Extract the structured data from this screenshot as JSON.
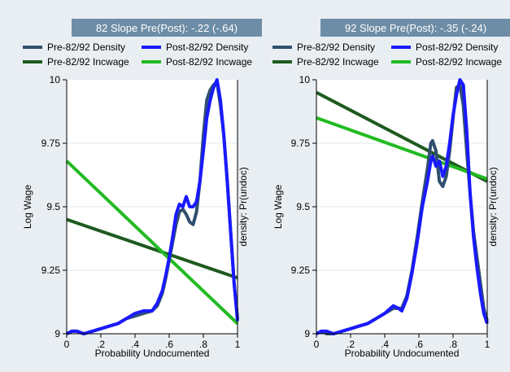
{
  "chart_data": [
    {
      "type": "line",
      "title": "82 Slope Pre(Post): -.22 (-.64)",
      "xlabel": "Probability Undocumented",
      "ylabel": "Log Wage",
      "y2label": "density: Pr(undoc)",
      "xlim": [
        0,
        1
      ],
      "ylim": [
        9,
        10
      ],
      "x_ticks": [
        "0",
        ".2",
        ".4",
        ".6",
        ".8",
        "1"
      ],
      "y_ticks": [
        "9",
        "9.25",
        "9.5",
        "9.75",
        "10"
      ],
      "grid": true,
      "legend_position": "top",
      "legend": [
        {
          "label": "Pre-82/92 Density",
          "color": "#2f4f6f"
        },
        {
          "label": "Post-82/92 Density",
          "color": "#1a1aff"
        },
        {
          "label": "Pre-82/92 Incwage",
          "color": "#1e5a1e"
        },
        {
          "label": "Post-82/92 Incwage",
          "color": "#22bb22"
        }
      ],
      "series": [
        {
          "name": "Pre-82/92 Incwage",
          "kind": "line",
          "color": "#1e5a1e",
          "points": [
            [
              0,
              9.45
            ],
            [
              1,
              9.22
            ]
          ]
        },
        {
          "name": "Post-82/92 Incwage",
          "kind": "line",
          "color": "#22bb22",
          "points": [
            [
              0,
              9.68
            ],
            [
              1,
              9.04
            ]
          ]
        },
        {
          "name": "Pre-82/92 Density",
          "kind": "density",
          "color": "#2f4f6f",
          "points": [
            [
              0,
              9.0
            ],
            [
              0.03,
              9.01
            ],
            [
              0.06,
              9.01
            ],
            [
              0.1,
              9.0
            ],
            [
              0.15,
              9.01
            ],
            [
              0.2,
              9.02
            ],
            [
              0.25,
              9.03
            ],
            [
              0.3,
              9.04
            ],
            [
              0.35,
              9.06
            ],
            [
              0.4,
              9.07
            ],
            [
              0.45,
              9.08
            ],
            [
              0.5,
              9.09
            ],
            [
              0.53,
              9.11
            ],
            [
              0.56,
              9.16
            ],
            [
              0.58,
              9.22
            ],
            [
              0.6,
              9.29
            ],
            [
              0.62,
              9.36
            ],
            [
              0.64,
              9.43
            ],
            [
              0.66,
              9.48
            ],
            [
              0.68,
              9.49
            ],
            [
              0.7,
              9.47
            ],
            [
              0.72,
              9.44
            ],
            [
              0.74,
              9.43
            ],
            [
              0.76,
              9.48
            ],
            [
              0.78,
              9.6
            ],
            [
              0.8,
              9.78
            ],
            [
              0.82,
              9.92
            ],
            [
              0.84,
              9.96
            ],
            [
              0.86,
              9.98
            ],
            [
              0.88,
              9.99
            ],
            [
              0.9,
              9.9
            ],
            [
              0.92,
              9.78
            ],
            [
              0.94,
              9.6
            ],
            [
              0.96,
              9.4
            ],
            [
              0.98,
              9.2
            ],
            [
              1.0,
              9.06
            ]
          ]
        },
        {
          "name": "Post-82/92 Density",
          "kind": "density",
          "color": "#1a1aff",
          "points": [
            [
              0,
              9.0
            ],
            [
              0.03,
              9.01
            ],
            [
              0.06,
              9.01
            ],
            [
              0.1,
              9.0
            ],
            [
              0.15,
              9.01
            ],
            [
              0.2,
              9.02
            ],
            [
              0.25,
              9.03
            ],
            [
              0.3,
              9.04
            ],
            [
              0.35,
              9.06
            ],
            [
              0.4,
              9.08
            ],
            [
              0.45,
              9.09
            ],
            [
              0.5,
              9.09
            ],
            [
              0.53,
              9.12
            ],
            [
              0.56,
              9.17
            ],
            [
              0.58,
              9.23
            ],
            [
              0.6,
              9.3
            ],
            [
              0.62,
              9.38
            ],
            [
              0.64,
              9.47
            ],
            [
              0.66,
              9.51
            ],
            [
              0.68,
              9.5
            ],
            [
              0.7,
              9.54
            ],
            [
              0.72,
              9.5
            ],
            [
              0.74,
              9.5
            ],
            [
              0.76,
              9.52
            ],
            [
              0.78,
              9.6
            ],
            [
              0.8,
              9.72
            ],
            [
              0.82,
              9.85
            ],
            [
              0.84,
              9.92
            ],
            [
              0.86,
              9.97
            ],
            [
              0.88,
              10.0
            ],
            [
              0.9,
              9.92
            ],
            [
              0.92,
              9.78
            ],
            [
              0.94,
              9.6
            ],
            [
              0.96,
              9.4
            ],
            [
              0.98,
              9.2
            ],
            [
              1.0,
              9.05
            ]
          ]
        }
      ]
    },
    {
      "type": "line",
      "title": "92 Slope Pre(Post): -.35 (-.24)",
      "xlabel": "Probability Undocumented",
      "ylabel": "Log Wage",
      "y2label": "density: Pr(undoc)",
      "xlim": [
        0,
        1
      ],
      "ylim": [
        9,
        10
      ],
      "x_ticks": [
        "0",
        ".2",
        ".4",
        ".6",
        ".8",
        "1"
      ],
      "y_ticks": [
        "9",
        "9.25",
        "9.5",
        "9.75",
        "10"
      ],
      "grid": true,
      "legend_position": "top",
      "legend": [
        {
          "label": "Pre-82/92 Density",
          "color": "#2f4f6f"
        },
        {
          "label": "Post-82/92 Density",
          "color": "#1a1aff"
        },
        {
          "label": "Pre-82/92 Incwage",
          "color": "#1e5a1e"
        },
        {
          "label": "Post-82/92 Incwage",
          "color": "#22bb22"
        }
      ],
      "series": [
        {
          "name": "Pre-82/92 Incwage",
          "kind": "line",
          "color": "#1e5a1e",
          "points": [
            [
              0,
              9.95
            ],
            [
              1,
              9.6
            ]
          ]
        },
        {
          "name": "Post-82/92 Incwage",
          "kind": "line",
          "color": "#22bb22",
          "points": [
            [
              0,
              9.85
            ],
            [
              1,
              9.61
            ]
          ]
        },
        {
          "name": "Pre-82/92 Density",
          "kind": "density",
          "color": "#2f4f6f",
          "points": [
            [
              0,
              9.0
            ],
            [
              0.03,
              9.01
            ],
            [
              0.06,
              9.0
            ],
            [
              0.1,
              9.0
            ],
            [
              0.15,
              9.01
            ],
            [
              0.2,
              9.02
            ],
            [
              0.25,
              9.03
            ],
            [
              0.3,
              9.04
            ],
            [
              0.35,
              9.06
            ],
            [
              0.4,
              9.08
            ],
            [
              0.45,
              9.1
            ],
            [
              0.48,
              9.1
            ],
            [
              0.5,
              9.1
            ],
            [
              0.53,
              9.15
            ],
            [
              0.56,
              9.25
            ],
            [
              0.59,
              9.38
            ],
            [
              0.62,
              9.52
            ],
            [
              0.65,
              9.65
            ],
            [
              0.67,
              9.75
            ],
            [
              0.68,
              9.76
            ],
            [
              0.7,
              9.72
            ],
            [
              0.72,
              9.6
            ],
            [
              0.74,
              9.58
            ],
            [
              0.76,
              9.62
            ],
            [
              0.78,
              9.72
            ],
            [
              0.8,
              9.85
            ],
            [
              0.82,
              9.97
            ],
            [
              0.84,
              9.98
            ],
            [
              0.86,
              9.9
            ],
            [
              0.88,
              9.72
            ],
            [
              0.9,
              9.55
            ],
            [
              0.92,
              9.4
            ],
            [
              0.94,
              9.3
            ],
            [
              0.96,
              9.2
            ],
            [
              0.98,
              9.1
            ],
            [
              1.0,
              9.05
            ]
          ]
        },
        {
          "name": "Post-82/92 Density",
          "kind": "density",
          "color": "#1a1aff",
          "points": [
            [
              0,
              9.0
            ],
            [
              0.03,
              9.01
            ],
            [
              0.06,
              9.01
            ],
            [
              0.1,
              9.0
            ],
            [
              0.15,
              9.01
            ],
            [
              0.2,
              9.02
            ],
            [
              0.25,
              9.03
            ],
            [
              0.3,
              9.04
            ],
            [
              0.35,
              9.06
            ],
            [
              0.4,
              9.08
            ],
            [
              0.45,
              9.11
            ],
            [
              0.48,
              9.1
            ],
            [
              0.5,
              9.09
            ],
            [
              0.53,
              9.14
            ],
            [
              0.56,
              9.24
            ],
            [
              0.59,
              9.36
            ],
            [
              0.62,
              9.5
            ],
            [
              0.65,
              9.6
            ],
            [
              0.67,
              9.68
            ],
            [
              0.68,
              9.7
            ],
            [
              0.7,
              9.66
            ],
            [
              0.72,
              9.68
            ],
            [
              0.74,
              9.62
            ],
            [
              0.76,
              9.66
            ],
            [
              0.78,
              9.75
            ],
            [
              0.8,
              9.86
            ],
            [
              0.82,
              9.94
            ],
            [
              0.84,
              10.0
            ],
            [
              0.86,
              9.98
            ],
            [
              0.88,
              9.8
            ],
            [
              0.9,
              9.55
            ],
            [
              0.92,
              9.38
            ],
            [
              0.94,
              9.26
            ],
            [
              0.96,
              9.16
            ],
            [
              0.98,
              9.08
            ],
            [
              1.0,
              9.04
            ]
          ]
        }
      ]
    }
  ]
}
